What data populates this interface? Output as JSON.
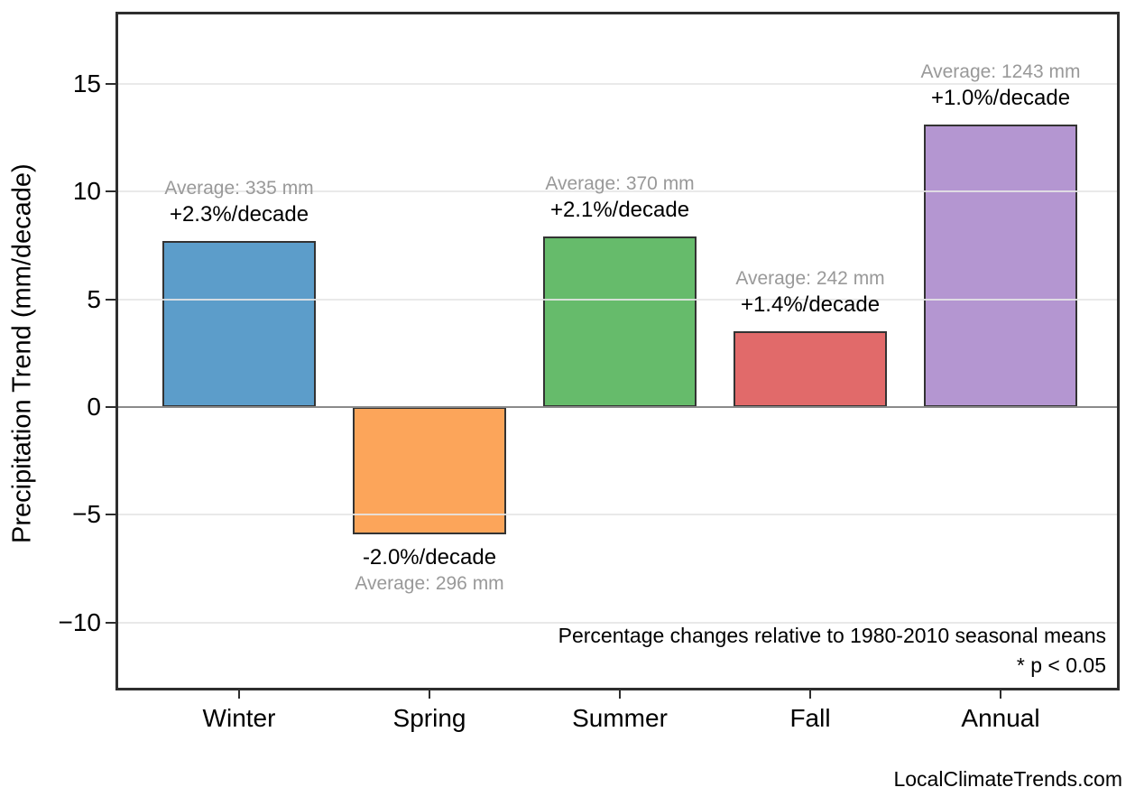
{
  "chart_data": {
    "type": "bar",
    "title": "",
    "categories": [
      "Winter",
      "Spring",
      "Summer",
      "Fall",
      "Annual"
    ],
    "values": [
      7.7,
      -5.9,
      7.9,
      3.5,
      13.1
    ],
    "units": "mm/decade",
    "bar_colors": [
      "#5C9DCA",
      "#FCA55A",
      "#66BB6B",
      "#E16A6A",
      "#B496D1"
    ],
    "bar_edge_color": "#333333",
    "annotations": [
      {
        "average": "Average: 335 mm",
        "trend": "+2.3%/decade",
        "position": "above"
      },
      {
        "average": "Average: 296 mm",
        "trend": "-2.0%/decade",
        "position": "below"
      },
      {
        "average": "Average: 370 mm",
        "trend": "+2.1%/decade",
        "position": "above"
      },
      {
        "average": "Average: 242 mm",
        "trend": "+1.4%/decade",
        "position": "above"
      },
      {
        "average": "Average: 1243 mm",
        "trend": "+1.0%/decade",
        "position": "above"
      }
    ],
    "xlabel": "",
    "ylabel": "Precipitation Trend (mm/decade)",
    "yticks": [
      {
        "label": "15",
        "value": 15
      },
      {
        "label": "10",
        "value": 10
      },
      {
        "label": "5",
        "value": 5
      },
      {
        "label": "0",
        "value": 0
      },
      {
        "label": "−5",
        "value": -5
      },
      {
        "label": "−10",
        "value": -10
      }
    ],
    "ylim": [
      -13.2,
      18.4
    ],
    "grid": true,
    "zero_line": true,
    "legend": null,
    "note_lines": [
      "Percentage changes relative to 1980-2010 seasonal means",
      "* p < 0.05"
    ],
    "watermark": "LocalClimateTrends.com",
    "colors": {
      "grid": "#EAEAEA",
      "zero_line": "#8A8A8A",
      "spine": "#2E2E2E",
      "average_text": "#999999",
      "trend_text": "#000000"
    }
  }
}
